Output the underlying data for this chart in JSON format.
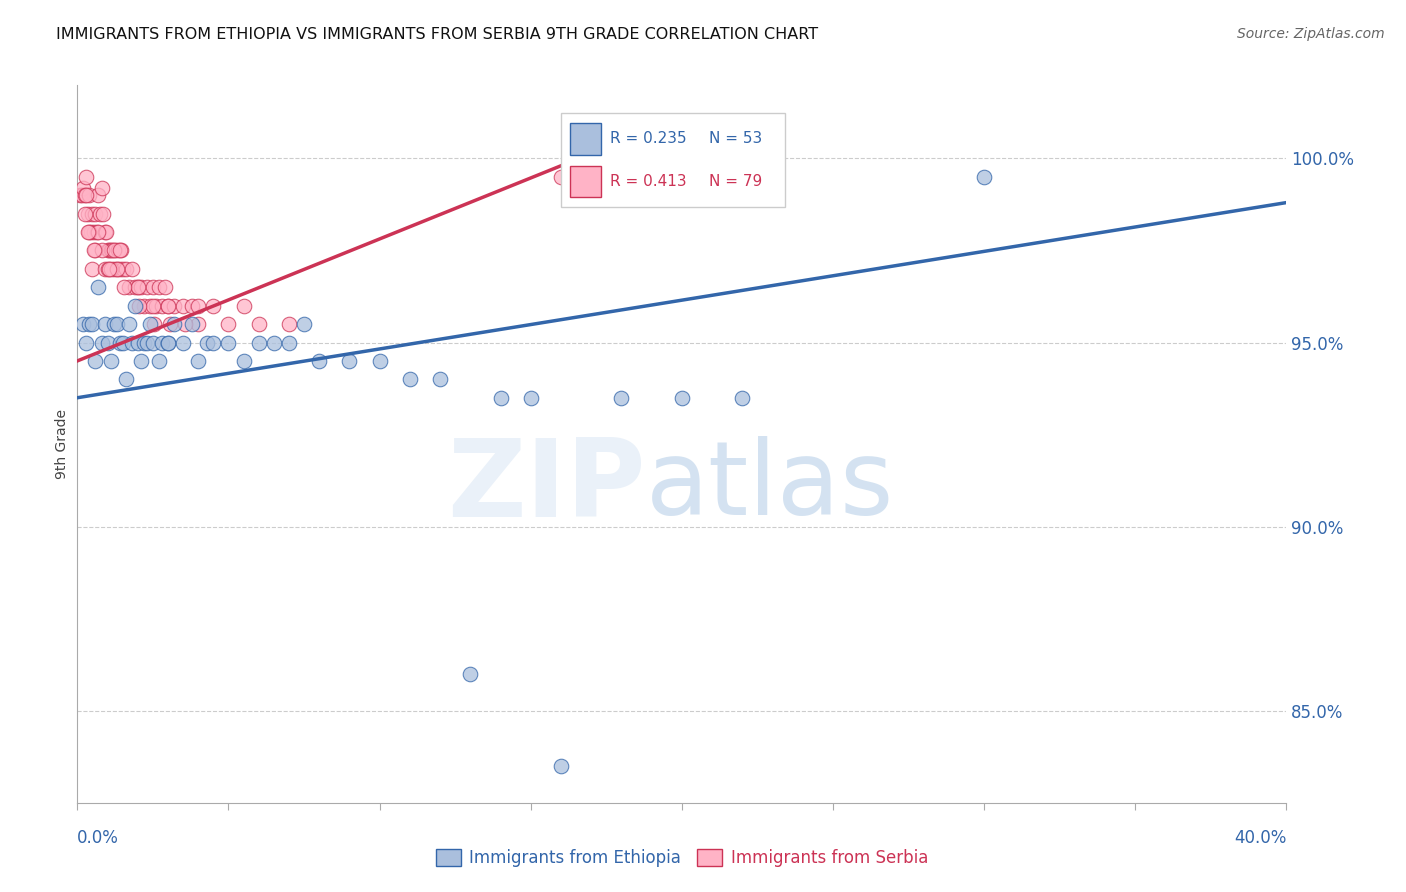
{
  "title": "IMMIGRANTS FROM ETHIOPIA VS IMMIGRANTS FROM SERBIA 9TH GRADE CORRELATION CHART",
  "source": "Source: ZipAtlas.com",
  "ylabel": "9th Grade",
  "xlim": [
    0.0,
    40.0
  ],
  "ylim": [
    82.5,
    102.0
  ],
  "y_ticks": [
    85.0,
    90.0,
    95.0,
    100.0
  ],
  "y_tick_labels": [
    "85.0%",
    "90.0%",
    "95.0%",
    "100.0%"
  ],
  "legend_blue_r": "R = 0.235",
  "legend_blue_n": "N = 53",
  "legend_pink_r": "R = 0.413",
  "legend_pink_n": "N = 79",
  "legend_label_blue": "Immigrants from Ethiopia",
  "legend_label_pink": "Immigrants from Serbia",
  "blue_color": "#AABFDD",
  "pink_color": "#FFB3C6",
  "trendline_blue": "#3366AA",
  "trendline_pink": "#CC3355",
  "blue_trendline_x": [
    0.0,
    40.0
  ],
  "blue_trendline_y": [
    93.5,
    98.8
  ],
  "pink_trendline_x": [
    0.0,
    16.0
  ],
  "pink_trendline_y": [
    94.5,
    99.8
  ],
  "blue_scatter_x": [
    0.2,
    0.3,
    0.4,
    0.5,
    0.6,
    0.7,
    0.8,
    0.9,
    1.0,
    1.1,
    1.2,
    1.3,
    1.4,
    1.5,
    1.6,
    1.7,
    1.8,
    1.9,
    2.0,
    2.1,
    2.2,
    2.3,
    2.4,
    2.5,
    2.7,
    2.8,
    3.0,
    3.2,
    3.5,
    3.8,
    4.0,
    4.3,
    4.5,
    5.0,
    5.5,
    6.0,
    6.5,
    7.0,
    7.5,
    8.0,
    9.0,
    10.0,
    11.0,
    12.0,
    14.0,
    15.0,
    18.0,
    20.0,
    3.0,
    30.0,
    13.0,
    16.0,
    22.0
  ],
  "blue_scatter_y": [
    95.5,
    95.0,
    95.5,
    95.5,
    94.5,
    96.5,
    95.0,
    95.5,
    95.0,
    94.5,
    95.5,
    95.5,
    95.0,
    95.0,
    94.0,
    95.5,
    95.0,
    96.0,
    95.0,
    94.5,
    95.0,
    95.0,
    95.5,
    95.0,
    94.5,
    95.0,
    95.0,
    95.5,
    95.0,
    95.5,
    94.5,
    95.0,
    95.0,
    95.0,
    94.5,
    95.0,
    95.0,
    95.0,
    95.5,
    94.5,
    94.5,
    94.5,
    94.0,
    94.0,
    93.5,
    93.5,
    93.5,
    93.5,
    95.0,
    99.5,
    86.0,
    83.5,
    93.5
  ],
  "pink_scatter_x": [
    0.1,
    0.15,
    0.2,
    0.25,
    0.3,
    0.35,
    0.4,
    0.45,
    0.5,
    0.55,
    0.6,
    0.65,
    0.7,
    0.75,
    0.8,
    0.85,
    0.9,
    0.95,
    1.0,
    1.05,
    1.1,
    1.15,
    1.2,
    1.25,
    1.3,
    1.35,
    1.4,
    1.45,
    1.5,
    1.6,
    1.7,
    1.8,
    1.9,
    2.0,
    2.1,
    2.2,
    2.3,
    2.4,
    2.5,
    2.6,
    2.7,
    2.8,
    2.9,
    3.0,
    3.2,
    3.5,
    3.8,
    4.0,
    4.5,
    5.0,
    6.0,
    7.0,
    0.3,
    0.4,
    0.5,
    0.6,
    0.7,
    0.8,
    0.9,
    1.0,
    1.1,
    1.2,
    1.3,
    1.4,
    2.0,
    2.5,
    3.0,
    16.0,
    4.0,
    5.5,
    0.25,
    0.35,
    0.55,
    1.05,
    1.55,
    2.05,
    2.55,
    3.05,
    3.55
  ],
  "pink_scatter_y": [
    99.0,
    99.0,
    99.2,
    99.0,
    99.5,
    98.5,
    99.0,
    98.0,
    98.5,
    98.0,
    98.5,
    98.0,
    99.0,
    98.5,
    99.2,
    98.5,
    98.0,
    98.0,
    97.5,
    97.5,
    97.5,
    97.5,
    97.0,
    97.5,
    97.0,
    97.5,
    97.0,
    97.5,
    97.0,
    97.0,
    96.5,
    97.0,
    96.5,
    96.5,
    96.5,
    96.0,
    96.5,
    96.0,
    96.5,
    96.0,
    96.5,
    96.0,
    96.5,
    96.0,
    96.0,
    96.0,
    96.0,
    95.5,
    96.0,
    95.5,
    95.5,
    95.5,
    99.0,
    98.0,
    97.0,
    97.5,
    98.0,
    97.5,
    97.0,
    97.0,
    97.0,
    97.5,
    97.0,
    97.5,
    96.5,
    96.0,
    96.0,
    99.5,
    96.0,
    96.0,
    98.5,
    98.0,
    97.5,
    97.0,
    96.5,
    96.0,
    95.5,
    95.5,
    95.5
  ]
}
